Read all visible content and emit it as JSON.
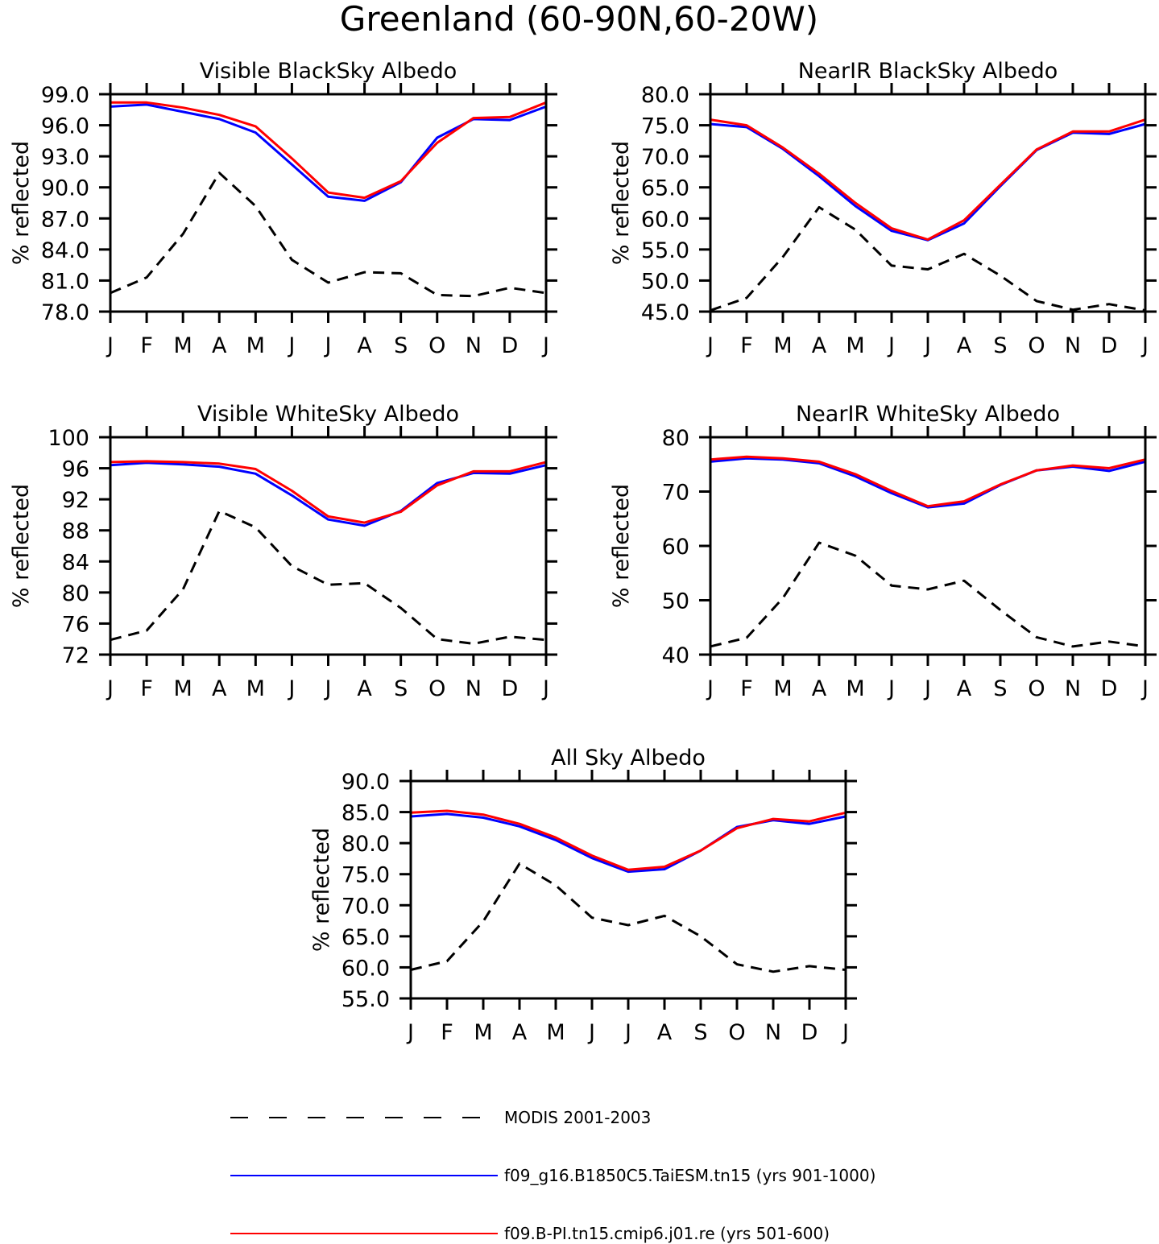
{
  "title": "Greenland (60-90N,60-20W)",
  "colors": {
    "modis": "#000000",
    "taiesm": "#0000ff",
    "cmip6": "#ff0000"
  },
  "legend": [
    {
      "key": "modis",
      "label": "MODIS 2001-2003",
      "style": "dashed"
    },
    {
      "key": "taiesm",
      "label": "f09_g16.B1850C5.TaiESM.tn15 (yrs 901-1000)",
      "style": "solid"
    },
    {
      "key": "cmip6",
      "label": "f09.B-PI.tn15.cmip6.j01.re (yrs 501-600)",
      "style": "solid"
    }
  ],
  "chart_data": [
    {
      "type": "line",
      "title": "Visible BlackSky Albedo",
      "ylabel": "% reflected",
      "categories": [
        "J",
        "F",
        "M",
        "A",
        "M",
        "J",
        "J",
        "A",
        "S",
        "O",
        "N",
        "D",
        "J"
      ],
      "ylim": [
        78,
        99
      ],
      "yticks": [
        "78.0",
        "81.0",
        "84.0",
        "87.0",
        "90.0",
        "93.0",
        "96.0",
        "99.0"
      ],
      "series": [
        {
          "name": "MODIS 2001-2003",
          "key": "modis",
          "values": [
            79.8,
            81.3,
            85.5,
            91.4,
            88.2,
            83.0,
            80.8,
            81.8,
            81.7,
            79.6,
            79.5,
            80.3,
            79.8
          ]
        },
        {
          "name": "f09_g16.B1850C5.TaiESM.tn15 (yrs 901-1000)",
          "key": "taiesm",
          "values": [
            97.8,
            98.0,
            97.3,
            96.6,
            95.3,
            92.2,
            89.1,
            88.7,
            90.5,
            94.8,
            96.6,
            96.5,
            97.8
          ]
        },
        {
          "name": "f09.B-PI.tn15.cmip6.j01.re (yrs 501-600)",
          "key": "cmip6",
          "values": [
            98.2,
            98.2,
            97.7,
            97.0,
            95.9,
            92.8,
            89.5,
            89.0,
            90.6,
            94.3,
            96.7,
            96.8,
            98.2
          ]
        }
      ]
    },
    {
      "type": "line",
      "title": "NearIR BlackSky Albedo",
      "ylabel": "% reflected",
      "categories": [
        "J",
        "F",
        "M",
        "A",
        "M",
        "J",
        "J",
        "A",
        "S",
        "O",
        "N",
        "D",
        "J"
      ],
      "ylim": [
        45,
        80
      ],
      "yticks": [
        "45.0",
        "50.0",
        "55.0",
        "60.0",
        "65.0",
        "70.0",
        "75.0",
        "80.0"
      ],
      "series": [
        {
          "name": "MODIS 2001-2003",
          "key": "modis",
          "values": [
            45.2,
            47.2,
            53.8,
            61.8,
            58.2,
            52.4,
            51.8,
            54.3,
            50.8,
            46.7,
            45.3,
            46.2,
            45.2
          ]
        },
        {
          "name": "f09_g16.B1850C5.TaiESM.tn15 (yrs 901-1000)",
          "key": "taiesm",
          "values": [
            75.2,
            74.7,
            71.2,
            66.8,
            62.0,
            58.0,
            56.5,
            59.2,
            65.2,
            71.0,
            73.8,
            73.6,
            75.2
          ]
        },
        {
          "name": "f09.B-PI.tn15.cmip6.j01.re (yrs 501-600)",
          "key": "cmip6",
          "values": [
            75.9,
            75.0,
            71.4,
            67.2,
            62.5,
            58.4,
            56.6,
            59.7,
            65.4,
            71.1,
            74.0,
            74.0,
            75.9
          ]
        }
      ]
    },
    {
      "type": "line",
      "title": "Visible WhiteSky Albedo",
      "ylabel": "% reflected",
      "categories": [
        "J",
        "F",
        "M",
        "A",
        "M",
        "J",
        "J",
        "A",
        "S",
        "O",
        "N",
        "D",
        "J"
      ],
      "ylim": [
        72,
        100
      ],
      "yticks": [
        "72",
        "76",
        "80",
        "84",
        "88",
        "92",
        "96",
        "100"
      ],
      "series": [
        {
          "name": "MODIS 2001-2003",
          "key": "modis",
          "values": [
            73.9,
            75.1,
            80.4,
            90.5,
            88.4,
            83.4,
            81.0,
            81.2,
            78.0,
            74.0,
            73.4,
            74.3,
            73.9
          ]
        },
        {
          "name": "f09_g16.B1850C5.TaiESM.tn15 (yrs 901-1000)",
          "key": "taiesm",
          "values": [
            96.4,
            96.7,
            96.5,
            96.2,
            95.3,
            92.5,
            89.4,
            88.6,
            90.5,
            94.1,
            95.4,
            95.3,
            96.4
          ]
        },
        {
          "name": "f09.B-PI.tn15.cmip6.j01.re (yrs 501-600)",
          "key": "cmip6",
          "values": [
            96.8,
            96.9,
            96.8,
            96.6,
            95.9,
            93.1,
            89.8,
            89.0,
            90.4,
            93.8,
            95.6,
            95.6,
            96.8
          ]
        }
      ]
    },
    {
      "type": "line",
      "title": "NearIR WhiteSky Albedo",
      "ylabel": "% reflected",
      "categories": [
        "J",
        "F",
        "M",
        "A",
        "M",
        "J",
        "J",
        "A",
        "S",
        "O",
        "N",
        "D",
        "J"
      ],
      "ylim": [
        40,
        80
      ],
      "yticks": [
        "40",
        "50",
        "60",
        "70",
        "80"
      ],
      "series": [
        {
          "name": "MODIS 2001-2003",
          "key": "modis",
          "values": [
            41.5,
            43.1,
            50.4,
            60.6,
            58.2,
            52.7,
            52.0,
            53.6,
            48.2,
            43.2,
            41.5,
            42.4,
            41.5
          ]
        },
        {
          "name": "f09_g16.B1850C5.TaiESM.tn15 (yrs 901-1000)",
          "key": "taiesm",
          "values": [
            75.5,
            76.1,
            75.9,
            75.2,
            72.8,
            69.7,
            67.1,
            67.8,
            71.2,
            73.9,
            74.6,
            73.8,
            75.5
          ]
        },
        {
          "name": "f09.B-PI.tn15.cmip6.j01.re (yrs 501-600)",
          "key": "cmip6",
          "values": [
            75.9,
            76.4,
            76.1,
            75.5,
            73.2,
            70.1,
            67.3,
            68.2,
            71.3,
            73.9,
            74.8,
            74.3,
            75.9
          ]
        }
      ]
    },
    {
      "type": "line",
      "title": "All Sky Albedo",
      "ylabel": "% reflected",
      "categories": [
        "J",
        "F",
        "M",
        "A",
        "M",
        "J",
        "J",
        "A",
        "S",
        "O",
        "N",
        "D",
        "J"
      ],
      "ylim": [
        55,
        90
      ],
      "yticks": [
        "55.0",
        "60.0",
        "65.0",
        "70.0",
        "75.0",
        "80.0",
        "85.0",
        "90.0"
      ],
      "series": [
        {
          "name": "MODIS 2001-2003",
          "key": "modis",
          "values": [
            59.6,
            61.0,
            67.4,
            76.7,
            73.2,
            68.0,
            66.8,
            68.3,
            65.0,
            60.5,
            59.3,
            60.2,
            59.6
          ]
        },
        {
          "name": "f09_g16.B1850C5.TaiESM.tn15 (yrs 901-1000)",
          "key": "taiesm",
          "values": [
            84.3,
            84.7,
            84.1,
            82.7,
            80.5,
            77.6,
            75.4,
            75.8,
            78.8,
            82.6,
            83.7,
            83.1,
            84.3
          ]
        },
        {
          "name": "f09.B-PI.tn15.cmip6.j01.re (yrs 501-600)",
          "key": "cmip6",
          "values": [
            84.9,
            85.2,
            84.6,
            83.1,
            80.9,
            78.0,
            75.7,
            76.2,
            78.8,
            82.4,
            83.9,
            83.5,
            84.9
          ]
        }
      ]
    }
  ]
}
